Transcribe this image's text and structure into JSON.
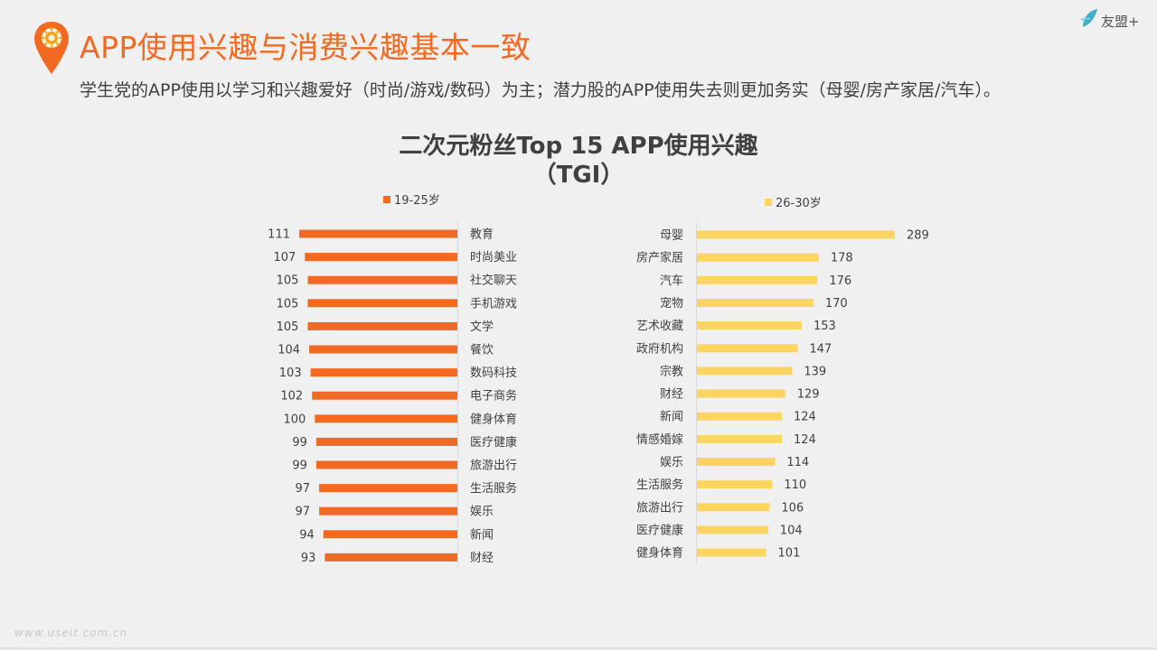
{
  "header": {
    "title": "APP使用兴趣与消费兴趣基本一致",
    "subtitle": "学生党的APP使用以学习和兴趣爱好（时尚/游戏/数码）为主；潜力股的APP使用失去则更加务实（母婴/房产家居/汽车）。",
    "logo_text": "友盟+",
    "watermark": "www.useit.com.cn"
  },
  "colors": {
    "accent": "#f26a21",
    "left_series": "#f26a21",
    "right_series": "#fcd462"
  },
  "chart_data": [
    {
      "type": "bar",
      "orientation": "horizontal",
      "title": "二次元粉丝Top 15 APP使用兴趣",
      "title_line2": "（TGI）",
      "legend": "19-25岁",
      "series": [
        {
          "name": "19-25岁",
          "categories": [
            "教育",
            "时尚美业",
            "社交聊天",
            "手机游戏",
            "文学",
            "餐饮",
            "数码科技",
            "电子商务",
            "健身体育",
            "医疗健康",
            "旅游出行",
            "生活服务",
            "娱乐",
            "新闻",
            "财经"
          ],
          "values": [
            111,
            107,
            105,
            105,
            105,
            104,
            103,
            102,
            100,
            99,
            99,
            97,
            97,
            94,
            93
          ]
        }
      ]
    },
    {
      "type": "bar",
      "orientation": "horizontal",
      "legend": "26-30岁",
      "series": [
        {
          "name": "26-30岁",
          "categories": [
            "母婴",
            "房产家居",
            "汽车",
            "宠物",
            "艺术收藏",
            "政府机构",
            "宗教",
            "财经",
            "新闻",
            "情感婚嫁",
            "娱乐",
            "生活服务",
            "旅游出行",
            "医疗健康",
            "健身体育"
          ],
          "values": [
            289,
            178,
            176,
            170,
            153,
            147,
            139,
            129,
            124,
            124,
            114,
            110,
            106,
            104,
            101
          ]
        }
      ]
    }
  ]
}
